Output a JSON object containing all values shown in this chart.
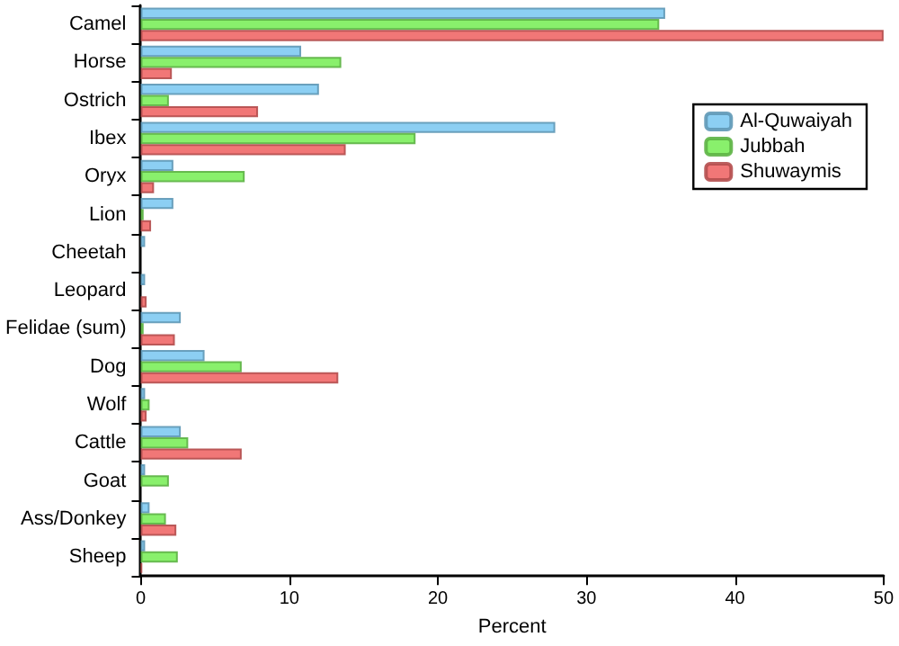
{
  "chart_data": {
    "type": "bar",
    "orientation": "horizontal",
    "xlabel": "Percent",
    "categories": [
      "Camel",
      "Horse",
      "Ostrich",
      "Ibex",
      "Oryx",
      "Lion",
      "Cheetah",
      "Leopard",
      "Felidae (sum)",
      "Dog",
      "Wolf",
      "Cattle",
      "Goat",
      "Ass/Donkey",
      "Sheep"
    ],
    "series": [
      {
        "name": "Al-Quwaiyah",
        "color": "#7fcaf2",
        "values": [
          35.3,
          10.8,
          12.0,
          27.9,
          2.2,
          2.2,
          0.3,
          0.3,
          2.7,
          4.3,
          0.3,
          2.7,
          0.3,
          0.6,
          0.3
        ]
      },
      {
        "name": "Jubbah",
        "color": "#7cee5c",
        "values": [
          34.9,
          13.5,
          1.9,
          18.5,
          7.0,
          0.2,
          0,
          0,
          0.2,
          6.8,
          0.6,
          3.2,
          1.9,
          1.7,
          2.5
        ]
      },
      {
        "name": "Shuwaymis",
        "color": "#f06868",
        "values": [
          50,
          2.1,
          7.9,
          13.8,
          0.9,
          0.7,
          0,
          0.4,
          2.3,
          13.3,
          0.4,
          6.8,
          0,
          2.4,
          0.1
        ]
      }
    ],
    "xlim": [
      0,
      50
    ],
    "xticks": [
      0,
      10,
      20,
      30,
      40,
      50
    ],
    "grid": false,
    "legend": "top right"
  }
}
